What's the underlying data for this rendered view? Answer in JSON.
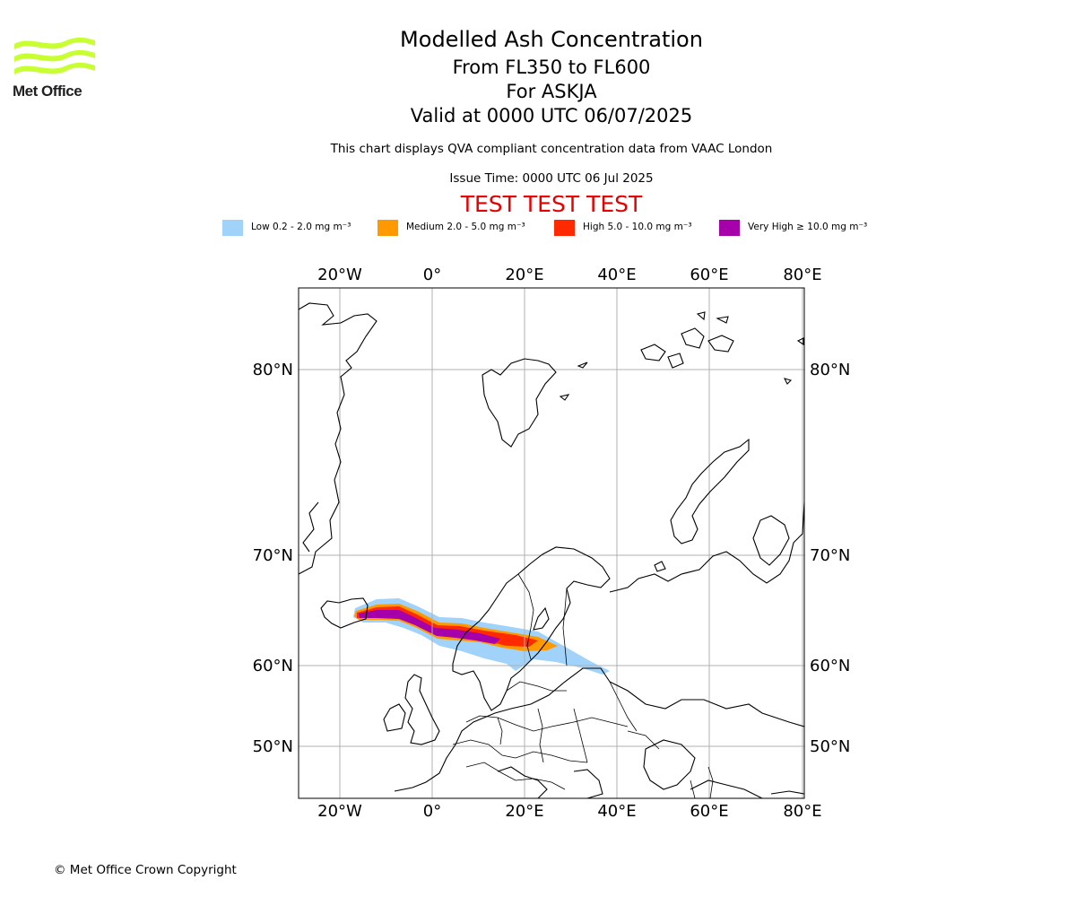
{
  "logo": {
    "text": "Met Office",
    "color": "#c8ff33"
  },
  "titles": {
    "main": "Modelled Ash Concentration",
    "levels": "From FL350 to FL600",
    "volcano": "For ASKJA",
    "valid": "Valid at 0000 UTC 06/07/2025",
    "compliance": "This chart displays QVA compliant concentration data from VAAC London",
    "issue": "Issue Time: 0000 UTC 06 Jul 2025",
    "test": "TEST TEST TEST"
  },
  "legend": [
    {
      "label": "Low 0.2 - 2.0 mg m⁻³",
      "color": "#a0d2fa"
    },
    {
      "label": "Medium 2.0 - 5.0 mg m⁻³",
      "color": "#ff9900"
    },
    {
      "label": "High 5.0 - 10.0 mg m⁻³",
      "color": "#ff2a00"
    },
    {
      "label": "Very High ≥ 10.0 mg m⁻³",
      "color": "#a600aa"
    }
  ],
  "map": {
    "lon_ticks": [
      "20°W",
      "0°",
      "20°E",
      "40°E",
      "60°E",
      "80°E"
    ],
    "lat_ticks": [
      "80°N",
      "70°N",
      "60°N",
      "50°N"
    ]
  },
  "copyright": "© Met Office Crown Copyright"
}
